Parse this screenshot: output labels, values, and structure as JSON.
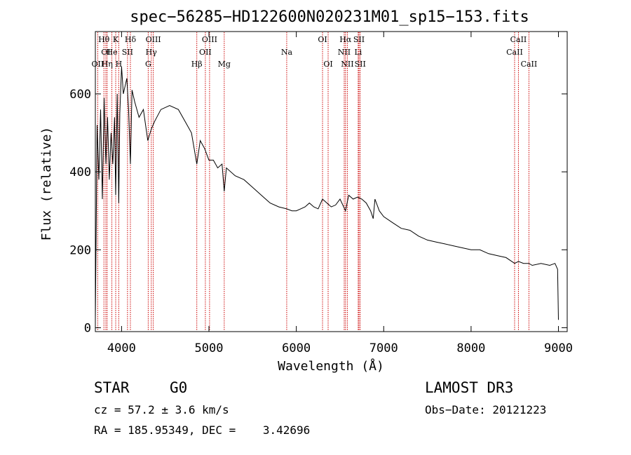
{
  "chart_data": {
    "type": "line",
    "title": "spec−56285−HD122600N020231M01_sp15−153.fits",
    "xlabel": "Wavelength (Å)",
    "ylabel": "Flux (relative)",
    "xlim": [
      3700,
      9100
    ],
    "ylim": [
      -10,
      760
    ],
    "xticks": [
      4000,
      5000,
      6000,
      7000,
      8000,
      9000
    ],
    "xtick_labels": [
      "4000",
      "5000",
      "6000",
      "7000",
      "8000",
      "9000"
    ],
    "yticks": [
      0,
      200,
      400,
      600
    ],
    "ytick_labels": [
      "0",
      "200",
      "400",
      "600"
    ],
    "x": [
      3700,
      3720,
      3740,
      3760,
      3780,
      3800,
      3820,
      3840,
      3860,
      3880,
      3900,
      3920,
      3933,
      3950,
      3968,
      3980,
      4000,
      4020,
      4040,
      4060,
      4080,
      4101,
      4120,
      4150,
      4200,
      4250,
      4300,
      4340,
      4380,
      4450,
      4550,
      4650,
      4750,
      4800,
      4861,
      4900,
      4950,
      5000,
      5050,
      5100,
      5150,
      5175,
      5200,
      5300,
      5400,
      5500,
      5600,
      5700,
      5800,
      5890,
      5950,
      6000,
      6050,
      6100,
      6150,
      6200,
      6250,
      6300,
      6350,
      6400,
      6450,
      6500,
      6563,
      6600,
      6650,
      6700,
      6750,
      6800,
      6850,
      6880,
      6900,
      6950,
      7000,
      7100,
      7200,
      7300,
      7400,
      7500,
      7600,
      7700,
      7800,
      7900,
      8000,
      8100,
      8200,
      8300,
      8400,
      8498,
      8542,
      8600,
      8662,
      8700,
      8800,
      8900,
      8960,
      8990,
      9000
    ],
    "y": [
      20,
      520,
      380,
      560,
      330,
      590,
      420,
      540,
      380,
      500,
      420,
      540,
      340,
      600,
      320,
      550,
      670,
      600,
      620,
      640,
      560,
      420,
      610,
      580,
      540,
      560,
      480,
      510,
      530,
      560,
      570,
      560,
      520,
      500,
      420,
      480,
      460,
      430,
      430,
      410,
      420,
      350,
      410,
      390,
      380,
      360,
      340,
      320,
      310,
      305,
      300,
      300,
      305,
      310,
      320,
      310,
      305,
      330,
      320,
      310,
      315,
      330,
      300,
      340,
      330,
      335,
      330,
      320,
      300,
      280,
      330,
      300,
      285,
      270,
      255,
      250,
      235,
      225,
      220,
      215,
      210,
      205,
      200,
      200,
      190,
      185,
      180,
      165,
      170,
      165,
      165,
      160,
      165,
      160,
      165,
      150,
      20
    ],
    "series": [
      {
        "name": "flux",
        "color": "#000000"
      }
    ],
    "annotations": {
      "line_color": "#cc0000",
      "lines": [
        {
          "label": "Hθ",
          "x": 3798,
          "row": 0
        },
        {
          "label": "OI",
          "x": 3820,
          "row": 1
        },
        {
          "label": "OII",
          "x": 3727,
          "row": 2
        },
        {
          "label": "He",
          "x": 3889,
          "row": 1
        },
        {
          "label": "Hη",
          "x": 3835,
          "row": 2
        },
        {
          "label": "K",
          "x": 3933,
          "row": 0
        },
        {
          "label": "SII",
          "x": 4068,
          "row": 1
        },
        {
          "label": "H",
          "x": 3968,
          "row": 2
        },
        {
          "label": "Hδ",
          "x": 4101,
          "row": 0
        },
        {
          "label": "OIII",
          "x": 4363,
          "row": 0
        },
        {
          "label": "Hγ",
          "x": 4340,
          "row": 1
        },
        {
          "label": "G",
          "x": 4305,
          "row": 2
        },
        {
          "label": "Hβ",
          "x": 4861,
          "row": 2
        },
        {
          "label": "OIII",
          "x": 5007,
          "row": 0
        },
        {
          "label": "OII",
          "x": 4959,
          "row": 1
        },
        {
          "label": "Mg",
          "x": 5175,
          "row": 2
        },
        {
          "label": "Na",
          "x": 5890,
          "row": 1
        },
        {
          "label": "OI",
          "x": 6300,
          "row": 0
        },
        {
          "label": "OI",
          "x": 6364,
          "row": 2
        },
        {
          "label": "Hα",
          "x": 6563,
          "row": 0
        },
        {
          "label": "SII",
          "x": 6717,
          "row": 0
        },
        {
          "label": "NII",
          "x": 6548,
          "row": 1
        },
        {
          "label": "Li",
          "x": 6708,
          "row": 1
        },
        {
          "label": "NII",
          "x": 6584,
          "row": 2
        },
        {
          "label": "SII",
          "x": 6731,
          "row": 2
        },
        {
          "label": "CaII",
          "x": 8542,
          "row": 0
        },
        {
          "label": "CaII",
          "x": 8498,
          "row": 1
        },
        {
          "label": "CaII",
          "x": 8662,
          "row": 2
        }
      ]
    }
  },
  "info": {
    "class": "STAR",
    "subclass": "G0",
    "survey": "LAMOST DR3",
    "cz": "cz = 57.2 ± 3.6 km/s",
    "obs_date": "Obs−Date: 20121223",
    "coords": "RA = 185.95349, DEC =    3.42696"
  }
}
